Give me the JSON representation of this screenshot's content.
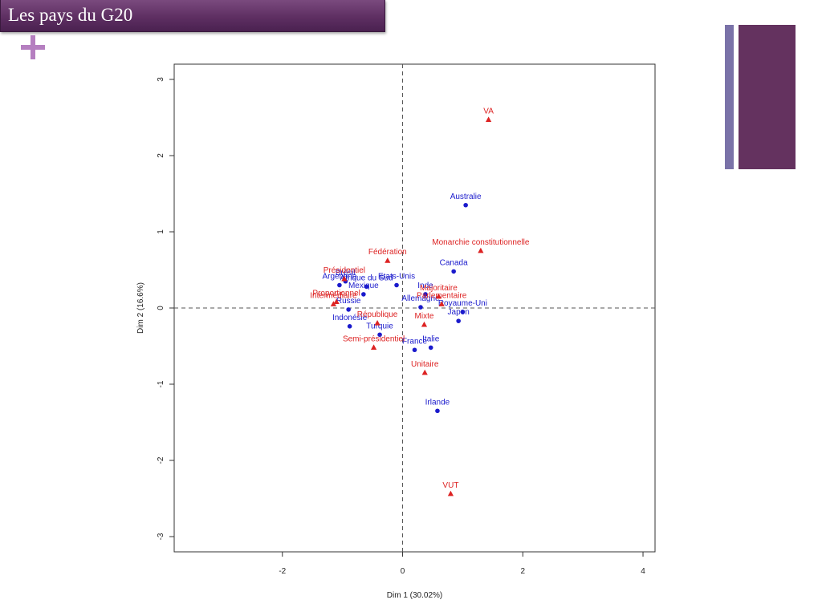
{
  "slide": {
    "title": "Les pays du G20"
  },
  "colors": {
    "title_bar": "#5e2f62",
    "accent_plus": "#b57fc0",
    "deco_thin": "#7a72a8",
    "deco_wide": "#64325f",
    "individuals": "#1a1acc",
    "variables": "#dd2222"
  },
  "icons": {
    "plus": "plus-icon"
  },
  "chart_data": {
    "type": "scatter",
    "title": "",
    "xlabel": "Dim 1 (30.02%)",
    "ylabel": "Dim 2 (16.6%)",
    "xlim": [
      -3.8,
      4.2
    ],
    "ylim": [
      -3.2,
      3.2
    ],
    "xticks": [
      -2,
      0,
      2,
      4
    ],
    "yticks": [
      -3,
      -2,
      -1,
      0,
      1,
      2,
      3
    ],
    "grid": false,
    "reference_lines": {
      "x": 0,
      "y": 0,
      "style": "dashed"
    },
    "series": [
      {
        "marker": "circle",
        "color": "#1a1acc",
        "points": [
          {
            "label": "Australie",
            "x": 1.05,
            "y": 1.35
          },
          {
            "label": "Canada",
            "x": 0.85,
            "y": 0.48
          },
          {
            "label": "Etats-Unis",
            "x": -0.1,
            "y": 0.3
          },
          {
            "label": "Argentine",
            "x": -1.05,
            "y": 0.3
          },
          {
            "label": "Brésil",
            "x": -0.95,
            "y": 0.35
          },
          {
            "label": "Afrique du Sud",
            "x": -0.6,
            "y": 0.28
          },
          {
            "label": "Mexique",
            "x": -0.65,
            "y": 0.18
          },
          {
            "label": "Inde",
            "x": 0.38,
            "y": 0.18
          },
          {
            "label": "Allemagne",
            "x": 0.3,
            "y": 0.01
          },
          {
            "label": "Royaume-Uni",
            "x": 1.0,
            "y": -0.05
          },
          {
            "label": "Japon",
            "x": 0.93,
            "y": -0.17
          },
          {
            "label": "Russie",
            "x": -0.9,
            "y": -0.02
          },
          {
            "label": "Indonésie",
            "x": -0.88,
            "y": -0.24
          },
          {
            "label": "Turquie",
            "x": -0.38,
            "y": -0.35
          },
          {
            "label": "France",
            "x": 0.2,
            "y": -0.55
          },
          {
            "label": "Italie",
            "x": 0.47,
            "y": -0.52
          },
          {
            "label": "Irlande",
            "x": 0.58,
            "y": -1.35
          }
        ]
      },
      {
        "marker": "triangle",
        "color": "#dd2222",
        "points": [
          {
            "label": "VA",
            "x": 1.43,
            "y": 2.47
          },
          {
            "label": "Monarchie constitutionnelle",
            "x": 1.3,
            "y": 0.75
          },
          {
            "label": "Fédération",
            "x": -0.25,
            "y": 0.62
          },
          {
            "label": "Présidentiel",
            "x": -0.97,
            "y": 0.38
          },
          {
            "label": "Proportionnel",
            "x": -1.1,
            "y": 0.08
          },
          {
            "label": "Intermédiaire",
            "x": -1.15,
            "y": 0.05
          },
          {
            "label": "Majoritaire",
            "x": 0.6,
            "y": 0.15
          },
          {
            "label": "Parlementaire",
            "x": 0.65,
            "y": 0.05
          },
          {
            "label": "République",
            "x": -0.42,
            "y": -0.2
          },
          {
            "label": "Mixte",
            "x": 0.36,
            "y": -0.22
          },
          {
            "label": "Semi-présidentiel",
            "x": -0.48,
            "y": -0.52
          },
          {
            "label": "Unitaire",
            "x": 0.37,
            "y": -0.85
          },
          {
            "label": "VUT",
            "x": 0.8,
            "y": -2.44
          }
        ]
      }
    ]
  }
}
